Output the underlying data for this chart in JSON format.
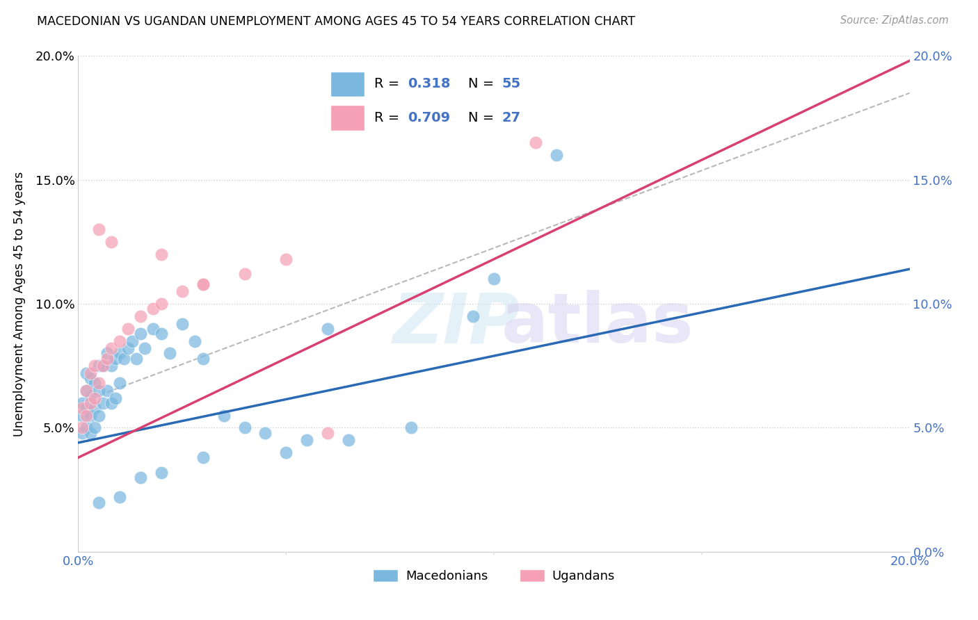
{
  "title": "MACEDONIAN VS UGANDAN UNEMPLOYMENT AMONG AGES 45 TO 54 YEARS CORRELATION CHART",
  "source": "Source: ZipAtlas.com",
  "ylabel": "Unemployment Among Ages 45 to 54 years",
  "xlim": [
    0.0,
    0.2
  ],
  "ylim": [
    0.0,
    0.2
  ],
  "macedonians_color": "#7ab8e0",
  "ugandans_color": "#f5a0b5",
  "macedonians_R": 0.318,
  "macedonians_N": 55,
  "ugandans_R": 0.709,
  "ugandans_N": 27,
  "macedonians_line_color": "#2a6ab5",
  "ugandans_line_color": "#d94070",
  "reference_line_color": "#b8b8b8",
  "text_blue": "#4472C4",
  "mac_x": [
    0.001,
    0.001,
    0.001,
    0.002,
    0.002,
    0.002,
    0.002,
    0.003,
    0.003,
    0.003,
    0.003,
    0.004,
    0.004,
    0.004,
    0.005,
    0.005,
    0.005,
    0.006,
    0.006,
    0.007,
    0.007,
    0.008,
    0.008,
    0.009,
    0.009,
    0.01,
    0.01,
    0.011,
    0.012,
    0.013,
    0.014,
    0.015,
    0.016,
    0.018,
    0.02,
    0.022,
    0.025,
    0.028,
    0.03,
    0.035,
    0.04,
    0.045,
    0.055,
    0.065,
    0.08,
    0.095,
    0.1,
    0.115,
    0.06,
    0.05,
    0.03,
    0.02,
    0.015,
    0.01,
    0.005
  ],
  "mac_y": [
    0.06,
    0.055,
    0.048,
    0.072,
    0.065,
    0.058,
    0.05,
    0.07,
    0.063,
    0.055,
    0.048,
    0.068,
    0.058,
    0.05,
    0.075,
    0.065,
    0.055,
    0.075,
    0.06,
    0.08,
    0.065,
    0.075,
    0.06,
    0.078,
    0.062,
    0.08,
    0.068,
    0.078,
    0.082,
    0.085,
    0.078,
    0.088,
    0.082,
    0.09,
    0.088,
    0.08,
    0.092,
    0.085,
    0.078,
    0.055,
    0.05,
    0.048,
    0.045,
    0.045,
    0.05,
    0.095,
    0.11,
    0.16,
    0.09,
    0.04,
    0.038,
    0.032,
    0.03,
    0.022,
    0.02
  ],
  "uga_x": [
    0.001,
    0.001,
    0.002,
    0.002,
    0.003,
    0.003,
    0.004,
    0.004,
    0.005,
    0.006,
    0.007,
    0.008,
    0.01,
    0.012,
    0.015,
    0.018,
    0.02,
    0.025,
    0.03,
    0.04,
    0.05,
    0.005,
    0.008,
    0.02,
    0.03,
    0.11,
    0.06
  ],
  "uga_y": [
    0.058,
    0.05,
    0.065,
    0.055,
    0.072,
    0.06,
    0.075,
    0.062,
    0.068,
    0.075,
    0.078,
    0.082,
    0.085,
    0.09,
    0.095,
    0.098,
    0.1,
    0.105,
    0.108,
    0.112,
    0.118,
    0.13,
    0.125,
    0.12,
    0.108,
    0.165,
    0.048
  ],
  "mac_line_x0": 0.0,
  "mac_line_y0": 0.044,
  "mac_line_x1": 0.2,
  "mac_line_y1": 0.114,
  "uga_line_x0": 0.0,
  "uga_line_y0": 0.038,
  "uga_line_x1": 0.2,
  "uga_line_y1": 0.198,
  "ref_line_x0": 0.0,
  "ref_line_y0": 0.06,
  "ref_line_x1": 0.2,
  "ref_line_y1": 0.185
}
